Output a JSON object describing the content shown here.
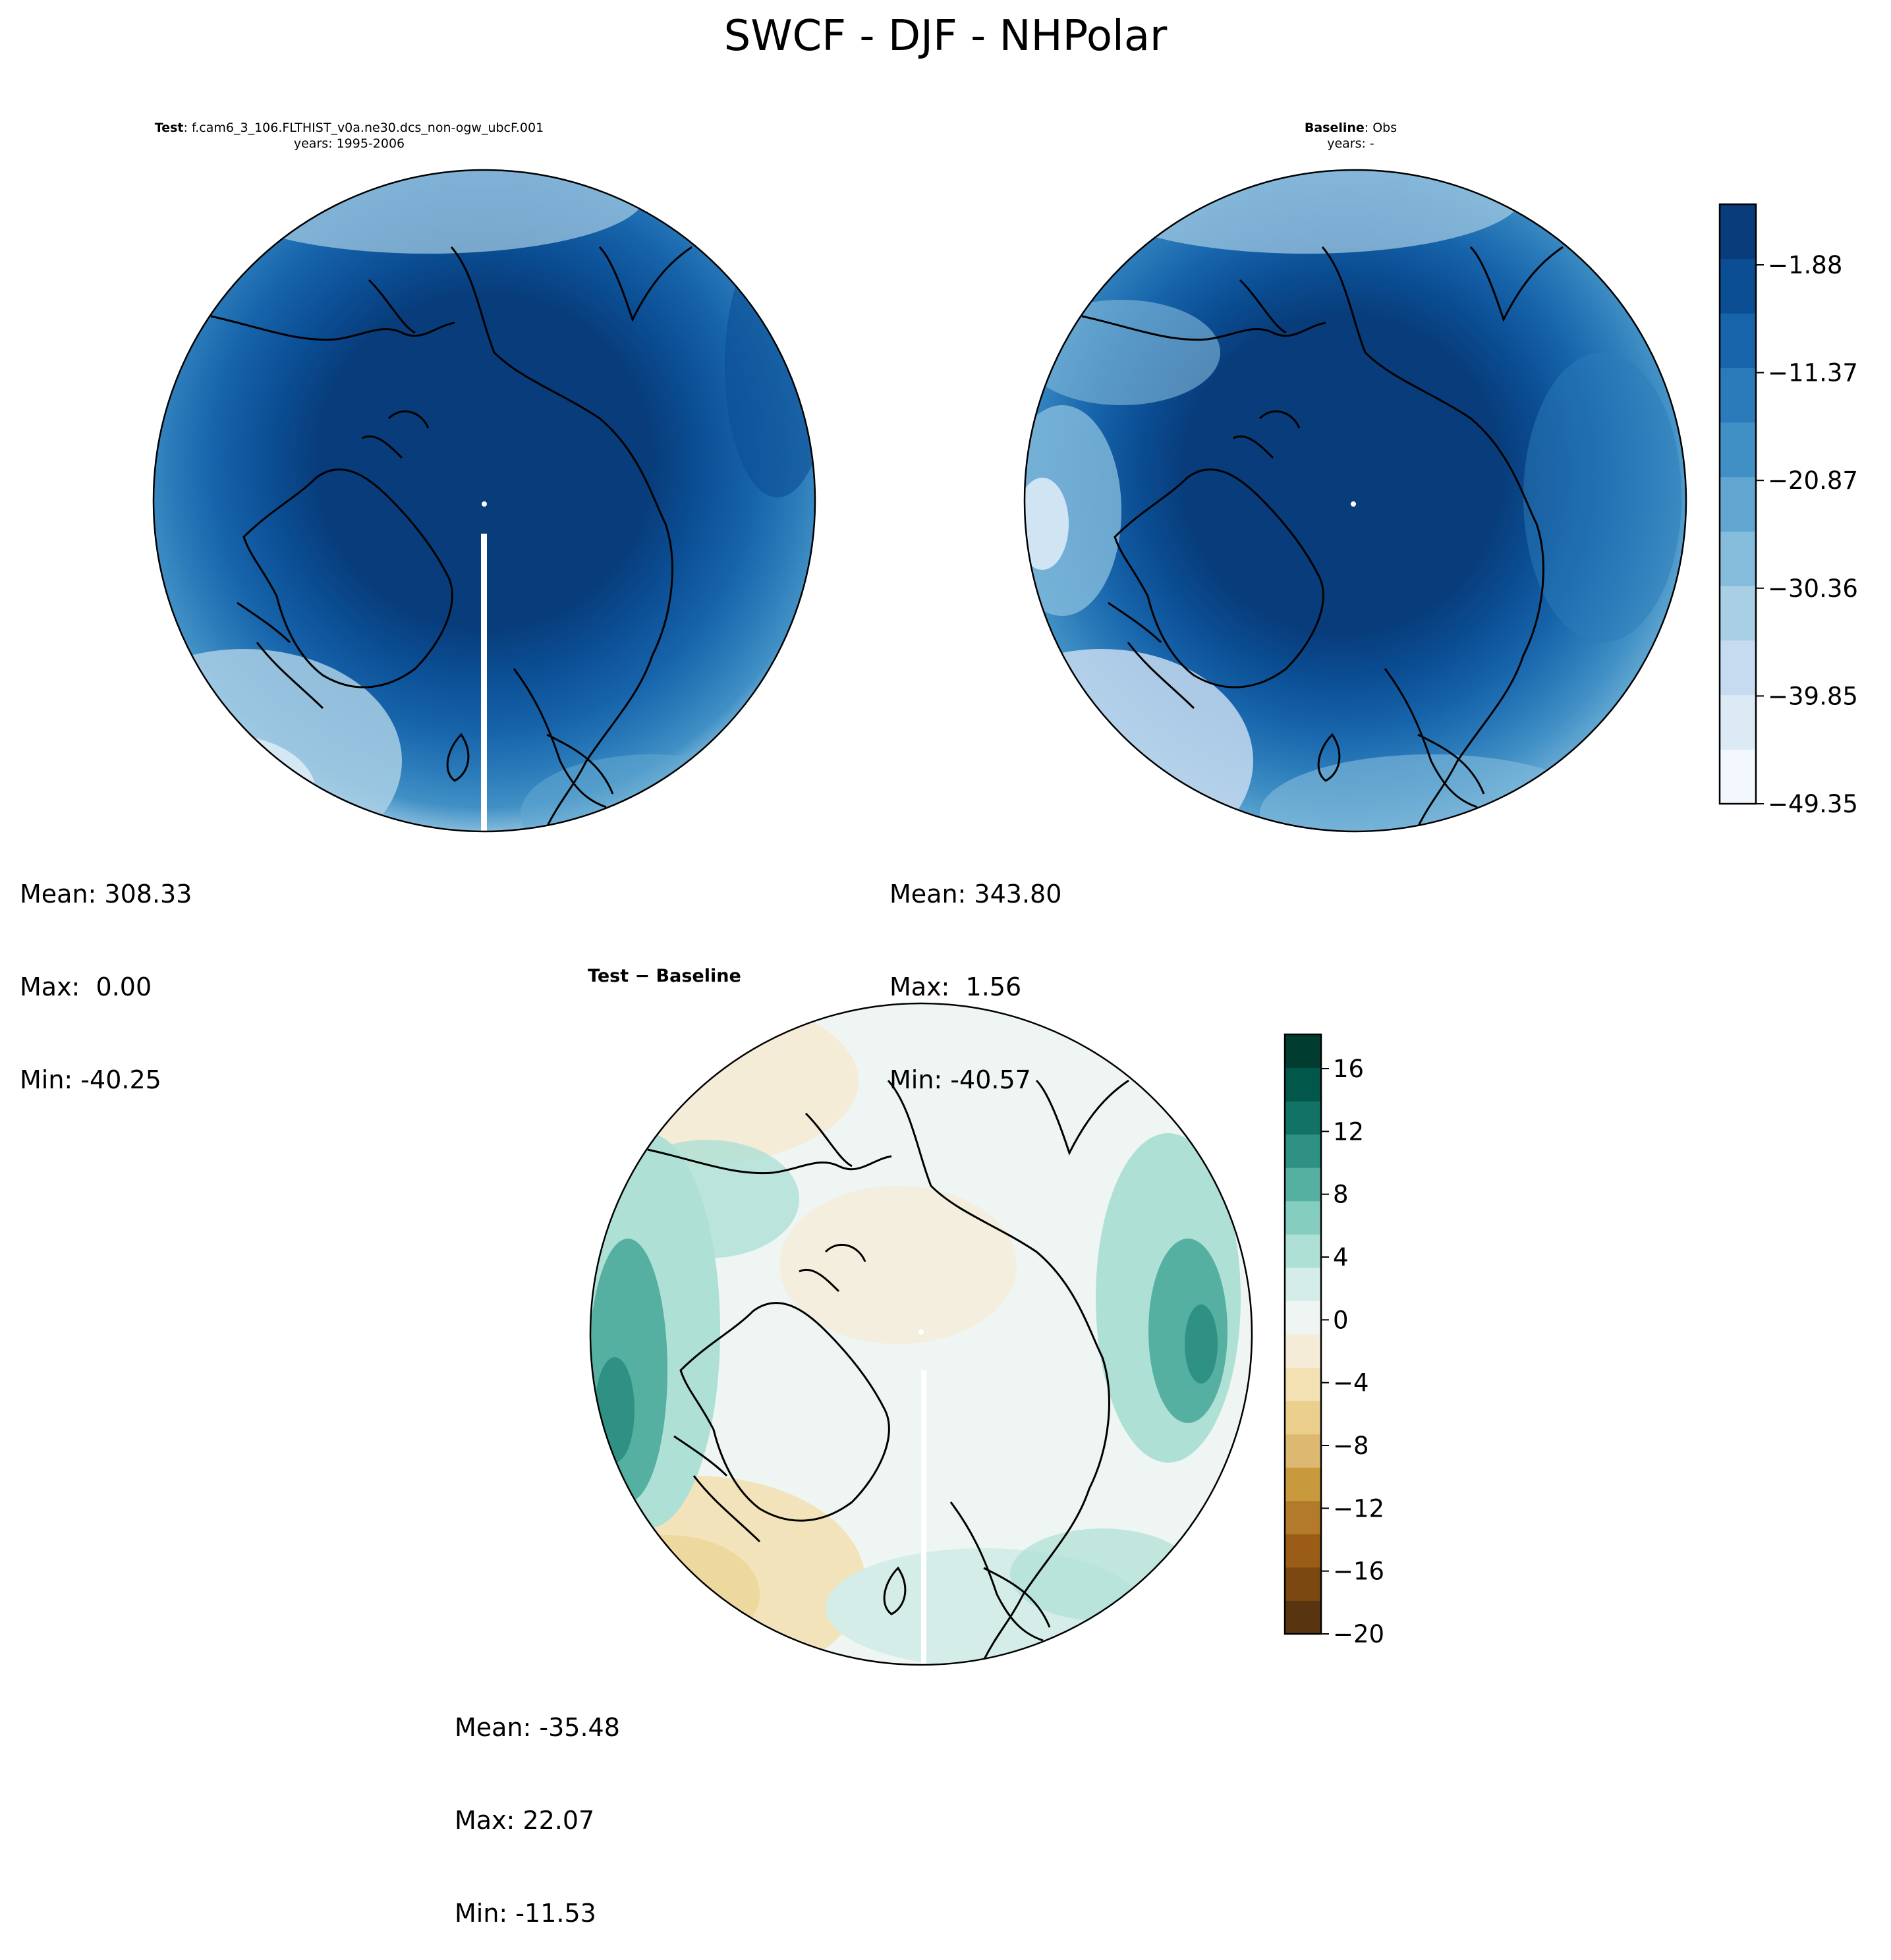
{
  "figure": {
    "title": "SWCF - DJF - NHPolar"
  },
  "panels": [
    {
      "id": "test",
      "title_bold": "Test",
      "title_rest": ": f.cam6_3_106.FLTHIST_v0a.ne30.dcs_non-ogw_ubcF.001",
      "subtitle": "years: 1995-2006",
      "stats": {
        "mean": "Mean: 308.33",
        "max": "Max:  0.00",
        "min": "Min: -40.25"
      }
    },
    {
      "id": "baseline",
      "title_bold": "Baseline",
      "title_rest": ": Obs",
      "subtitle": "years: -",
      "stats": {
        "mean": "Mean: 343.80",
        "max": "Max:  1.56",
        "min": "Min: -40.57"
      }
    },
    {
      "id": "diff",
      "title": "Test − Baseline",
      "stats": {
        "mean": "Mean: -35.48",
        "max": "Max: 22.07",
        "min": "Min: -11.53"
      }
    }
  ],
  "colorbars": {
    "blues": {
      "ticks": [
        "−1.88",
        "−11.37",
        "−20.87",
        "−30.36",
        "−39.85",
        "−49.35"
      ],
      "colors": [
        "#f2f8fd",
        "#dceaf6",
        "#c6dbef",
        "#a9cfe5",
        "#85bcdc",
        "#61a6d1",
        "#4190c5",
        "#2b7bba",
        "#1764ab",
        "#0b4e94",
        "#083c7a"
      ]
    },
    "brbg": {
      "ticks": [
        "16",
        "12",
        "8",
        "4",
        "0",
        "−4",
        "−8",
        "−12",
        "−16",
        "−20"
      ],
      "colors": [
        "#583510",
        "#7a4810",
        "#9a5c16",
        "#b47a2b",
        "#c9993e",
        "#dcb870",
        "#ead08c",
        "#f3e1b4",
        "#f5ecd8",
        "#eef5f2",
        "#d4ede8",
        "#aee0d6",
        "#84cdbf",
        "#56b0a1",
        "#2f9184",
        "#137266",
        "#01574a",
        "#003c30"
      ]
    }
  }
}
